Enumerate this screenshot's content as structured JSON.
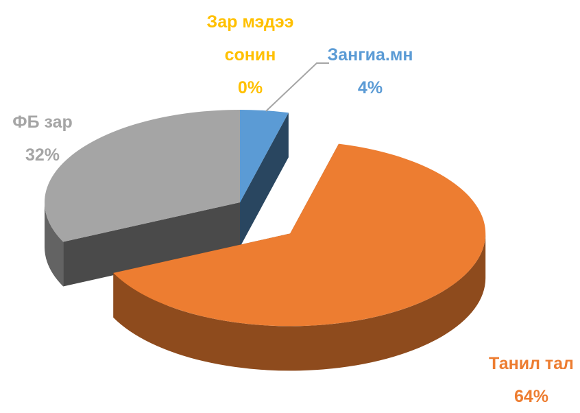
{
  "chart_data": {
    "type": "pie3d",
    "categories": [
      "Зангиа.мн",
      "Танил тал",
      "ФБ зар",
      "Зар мэдээ сонин"
    ],
    "values": [
      4,
      64,
      32,
      0
    ],
    "value_labels": [
      "4%",
      "64%",
      "32%",
      "0%"
    ],
    "colors": [
      "#5b9bd5",
      "#ed7d31",
      "#a5a5a5",
      "#ffc000"
    ],
    "exploded": [
      false,
      true,
      false,
      false
    ]
  }
}
